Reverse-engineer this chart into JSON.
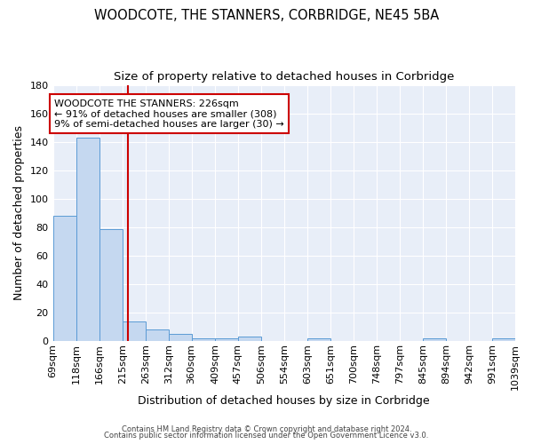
{
  "title": "WOODCOTE, THE STANNERS, CORBRIDGE, NE45 5BA",
  "subtitle": "Size of property relative to detached houses in Corbridge",
  "xlabel": "Distribution of detached houses by size in Corbridge",
  "ylabel": "Number of detached properties",
  "bar_values": [
    88,
    143,
    79,
    14,
    8,
    5,
    2,
    2,
    3,
    0,
    0,
    2,
    0,
    0,
    0,
    0,
    2,
    0,
    0,
    2
  ],
  "bin_edges": [
    69,
    118,
    166,
    215,
    263,
    312,
    360,
    409,
    457,
    506,
    554,
    603,
    651,
    700,
    748,
    797,
    845,
    894,
    942,
    991,
    1039
  ],
  "all_xtick_labels": [
    "69sqm",
    "118sqm",
    "166sqm",
    "215sqm",
    "263sqm",
    "312sqm",
    "360sqm",
    "409sqm",
    "457sqm",
    "506sqm",
    "554sqm",
    "603sqm",
    "651sqm",
    "700sqm",
    "748sqm",
    "797sqm",
    "845sqm",
    "894sqm",
    "942sqm",
    "991sqm",
    "1039sqm"
  ],
  "bar_color": "#c5d8f0",
  "bar_edge_color": "#5b9bd5",
  "red_line_x": 226,
  "annotation_line1": "WOODCOTE THE STANNERS: 226sqm",
  "annotation_line2": "← 91% of detached houses are smaller (308)",
  "annotation_line3": "9% of semi-detached houses are larger (30) →",
  "annotation_box_edge_color": "#cc0000",
  "red_line_color": "#cc0000",
  "ylim": [
    0,
    180
  ],
  "yticks": [
    0,
    20,
    40,
    60,
    80,
    100,
    120,
    140,
    160,
    180
  ],
  "background_color": "#e8eef8",
  "grid_color": "#ffffff",
  "title_fontsize": 10.5,
  "subtitle_fontsize": 9.5,
  "axis_label_fontsize": 9,
  "tick_fontsize": 8,
  "footer_line1": "Contains HM Land Registry data © Crown copyright and database right 2024.",
  "footer_line2": "Contains public sector information licensed under the Open Government Licence v3.0."
}
